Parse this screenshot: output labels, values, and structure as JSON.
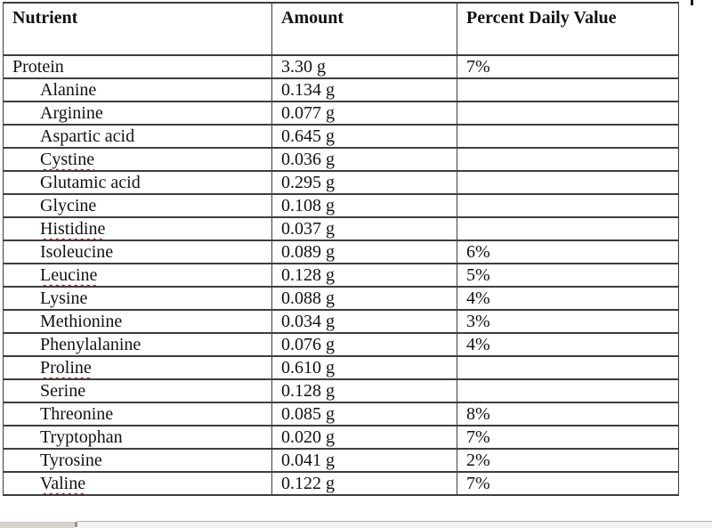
{
  "table": {
    "columns": [
      "Nutrient",
      "Amount",
      "Percent Daily Value"
    ],
    "rows": [
      {
        "nutrient": "Protein",
        "amount": "3.30 g",
        "pdv": "7%",
        "indent": false,
        "misspelled": false
      },
      {
        "nutrient": "Alanine",
        "amount": "0.134 g",
        "pdv": "",
        "indent": true,
        "misspelled": false
      },
      {
        "nutrient": "Arginine",
        "amount": "0.077 g",
        "pdv": "",
        "indent": true,
        "misspelled": false
      },
      {
        "nutrient": "Aspartic acid",
        "amount": "0.645 g",
        "pdv": "",
        "indent": true,
        "misspelled": false
      },
      {
        "nutrient": "Cystine",
        "amount": "0.036 g",
        "pdv": "",
        "indent": true,
        "misspelled": true
      },
      {
        "nutrient": "Glutamic acid",
        "amount": "0.295 g",
        "pdv": "",
        "indent": true,
        "misspelled": false
      },
      {
        "nutrient": "Glycine",
        "amount": "0.108 g",
        "pdv": "",
        "indent": true,
        "misspelled": false
      },
      {
        "nutrient": "Histidine",
        "amount": "0.037 g",
        "pdv": "",
        "indent": true,
        "misspelled": true
      },
      {
        "nutrient": "Isoleucine",
        "amount": "0.089 g",
        "pdv": "6%",
        "indent": true,
        "misspelled": false
      },
      {
        "nutrient": "Leucine",
        "amount": "0.128 g",
        "pdv": "5%",
        "indent": true,
        "misspelled": true
      },
      {
        "nutrient": "Lysine",
        "amount": "0.088 g",
        "pdv": "4%",
        "indent": true,
        "misspelled": false
      },
      {
        "nutrient": "Methionine",
        "amount": "0.034 g",
        "pdv": "3%",
        "indent": true,
        "misspelled": false
      },
      {
        "nutrient": "Phenylalanine",
        "amount": "0.076 g",
        "pdv": "4%",
        "indent": true,
        "misspelled": false
      },
      {
        "nutrient": "Proline",
        "amount": "0.610 g",
        "pdv": "",
        "indent": true,
        "misspelled": true
      },
      {
        "nutrient": "Serine",
        "amount": "0.128 g",
        "pdv": "",
        "indent": true,
        "misspelled": false
      },
      {
        "nutrient": "Threonine",
        "amount": "0.085 g",
        "pdv": "8%",
        "indent": true,
        "misspelled": false
      },
      {
        "nutrient": "Tryptophan",
        "amount": "0.020 g",
        "pdv": "7%",
        "indent": true,
        "misspelled": false
      },
      {
        "nutrient": "Tyrosine",
        "amount": "0.041 g",
        "pdv": "2%",
        "indent": true,
        "misspelled": false
      },
      {
        "nutrient": "Valine",
        "amount": "0.122 g",
        "pdv": "7%",
        "indent": true,
        "misspelled": true
      }
    ]
  },
  "colors": {
    "text": "#111111",
    "border": "#3d3d3d",
    "squiggle": "#c00000",
    "gutter": "#d6d3cd",
    "track": "#f2f1ef",
    "topline": "#a9b6c9"
  }
}
